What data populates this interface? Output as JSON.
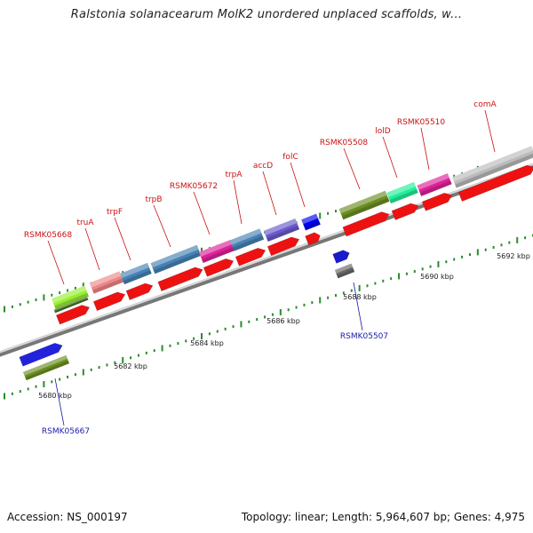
{
  "title": "Ralstonia solanacearum MolK2 unordered unplaced scaffolds, w...",
  "footer": {
    "accession": "Accession: NS_000197",
    "summary": "Topology: linear; Length: 5,964,607 bp; Genes: 4,975"
  },
  "scale_labels": [
    "5680 kbp",
    "5682 kbp",
    "5684 kbp",
    "5686 kbp",
    "5688 kbp",
    "5690 kbp",
    "5692 kbp"
  ],
  "genes_upper": [
    {
      "label": "RSMK05668",
      "color": "#99ee33"
    },
    {
      "label": "truA",
      "color": "#ee8888"
    },
    {
      "label": "trpF",
      "color": "#4682b4"
    },
    {
      "label": "trpB",
      "color": "#4682b4"
    },
    {
      "label": "RSMK05672",
      "color": "#dd2299"
    },
    {
      "label": "trpA",
      "color": "#4682b4"
    },
    {
      "label": "accD",
      "color": "#6a5acd"
    },
    {
      "label": "folC",
      "color": "#0000ee"
    },
    {
      "label": "RSMK05508",
      "color": "#6b8e23"
    },
    {
      "label": "lolD",
      "color": "#22ee99"
    },
    {
      "label": "RSMK05510",
      "color": "#dd2299"
    },
    {
      "label": "comA",
      "color": "#bbbbbb"
    }
  ],
  "genes_lower": [
    {
      "label": "RSMK05667",
      "color": "#2222dd"
    },
    {
      "label": "RSMK05507",
      "color": "#1a1acc"
    }
  ]
}
